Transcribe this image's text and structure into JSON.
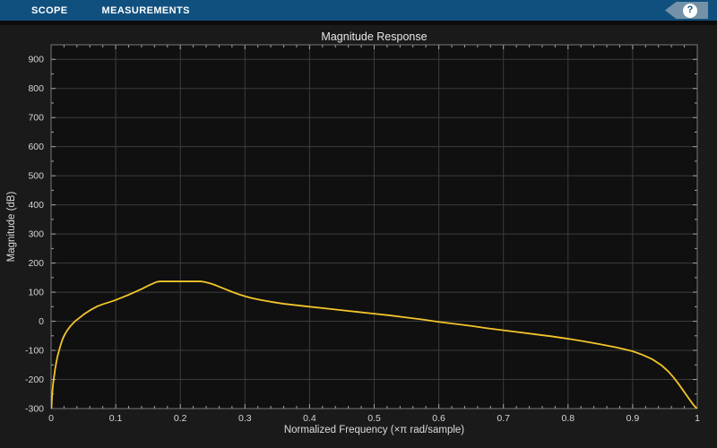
{
  "toolbar": {
    "tabs": [
      {
        "label": "SCOPE"
      },
      {
        "label": "MEASUREMENTS"
      }
    ],
    "help_label": "?",
    "bg_color": "#10507e",
    "help_tag_color": "#7392a7"
  },
  "chart_data": {
    "type": "line",
    "title": "Magnitude Response",
    "xlabel": "Normalized Frequency (×π rad/sample)",
    "ylabel": "Magnitude (dB)",
    "xlim": [
      0,
      1
    ],
    "ylim": [
      -300,
      950
    ],
    "grid": true,
    "legend": "none",
    "x_major_ticks": [
      0,
      0.1,
      0.2,
      0.3,
      0.4,
      0.5,
      0.6,
      0.7,
      0.8,
      0.9,
      1
    ],
    "x_tick_labels": [
      "0",
      "0.1",
      "0.2",
      "0.3",
      "0.4",
      "0.5",
      "0.6",
      "0.7",
      "0.8",
      "0.9",
      "1"
    ],
    "x_minor_step": 0.02,
    "y_major_ticks": [
      -300,
      -200,
      -100,
      0,
      100,
      200,
      300,
      400,
      500,
      600,
      700,
      800,
      900
    ],
    "y_tick_labels": [
      "-300",
      "-200",
      "-100",
      "0",
      "100",
      "200",
      "300",
      "400",
      "500",
      "600",
      "700",
      "800",
      "900"
    ],
    "y_minor_step": 50,
    "colors": {
      "line": "#f2c52b",
      "plot_bg": "#101010",
      "outer_bg": "#1a1a1a",
      "grid": "#3c3c3c",
      "box": "#787878",
      "tick": "#a6a6a6",
      "tick_text": "#d4d4d4"
    },
    "series": [
      {
        "name": "filter-magnitude-response",
        "points": [
          [
            0.0006,
            -300
          ],
          [
            0.001,
            -278
          ],
          [
            0.0015,
            -258
          ],
          [
            0.002,
            -243
          ],
          [
            0.003,
            -218
          ],
          [
            0.004,
            -200
          ],
          [
            0.005,
            -185
          ],
          [
            0.006,
            -168
          ],
          [
            0.008,
            -142
          ],
          [
            0.01,
            -120
          ],
          [
            0.012,
            -103
          ],
          [
            0.015,
            -80
          ],
          [
            0.018,
            -60
          ],
          [
            0.022,
            -42
          ],
          [
            0.026,
            -28
          ],
          [
            0.031,
            -14
          ],
          [
            0.037,
            0
          ],
          [
            0.044,
            12
          ],
          [
            0.052,
            26
          ],
          [
            0.062,
            40
          ],
          [
            0.072,
            52
          ],
          [
            0.082,
            60
          ],
          [
            0.092,
            67
          ],
          [
            0.1,
            73
          ],
          [
            0.11,
            82
          ],
          [
            0.12,
            91
          ],
          [
            0.13,
            101
          ],
          [
            0.14,
            111
          ],
          [
            0.15,
            122
          ],
          [
            0.158,
            130
          ],
          [
            0.163,
            135
          ],
          [
            0.168,
            137
          ],
          [
            0.18,
            137
          ],
          [
            0.2,
            137
          ],
          [
            0.22,
            137
          ],
          [
            0.232,
            137
          ],
          [
            0.238,
            135
          ],
          [
            0.245,
            131
          ],
          [
            0.252,
            126
          ],
          [
            0.26,
            119
          ],
          [
            0.27,
            110
          ],
          [
            0.28,
            101
          ],
          [
            0.29,
            93
          ],
          [
            0.3,
            86
          ],
          [
            0.31,
            80
          ],
          [
            0.325,
            73
          ],
          [
            0.34,
            67
          ],
          [
            0.36,
            60
          ],
          [
            0.38,
            55
          ],
          [
            0.4,
            50
          ],
          [
            0.425,
            44
          ],
          [
            0.45,
            38
          ],
          [
            0.475,
            32
          ],
          [
            0.5,
            26
          ],
          [
            0.525,
            20
          ],
          [
            0.55,
            13
          ],
          [
            0.575,
            6
          ],
          [
            0.6,
            -2
          ],
          [
            0.625,
            -9
          ],
          [
            0.65,
            -16
          ],
          [
            0.675,
            -24
          ],
          [
            0.7,
            -31
          ],
          [
            0.725,
            -38
          ],
          [
            0.75,
            -45
          ],
          [
            0.775,
            -52
          ],
          [
            0.8,
            -60
          ],
          [
            0.825,
            -69
          ],
          [
            0.85,
            -79
          ],
          [
            0.875,
            -90
          ],
          [
            0.9,
            -103
          ],
          [
            0.915,
            -115
          ],
          [
            0.93,
            -130
          ],
          [
            0.945,
            -152
          ],
          [
            0.955,
            -172
          ],
          [
            0.963,
            -192
          ],
          [
            0.97,
            -212
          ],
          [
            0.977,
            -234
          ],
          [
            0.983,
            -253
          ],
          [
            0.989,
            -272
          ],
          [
            0.994,
            -287
          ],
          [
            0.998,
            -297
          ],
          [
            0.9995,
            -300
          ]
        ]
      }
    ]
  }
}
